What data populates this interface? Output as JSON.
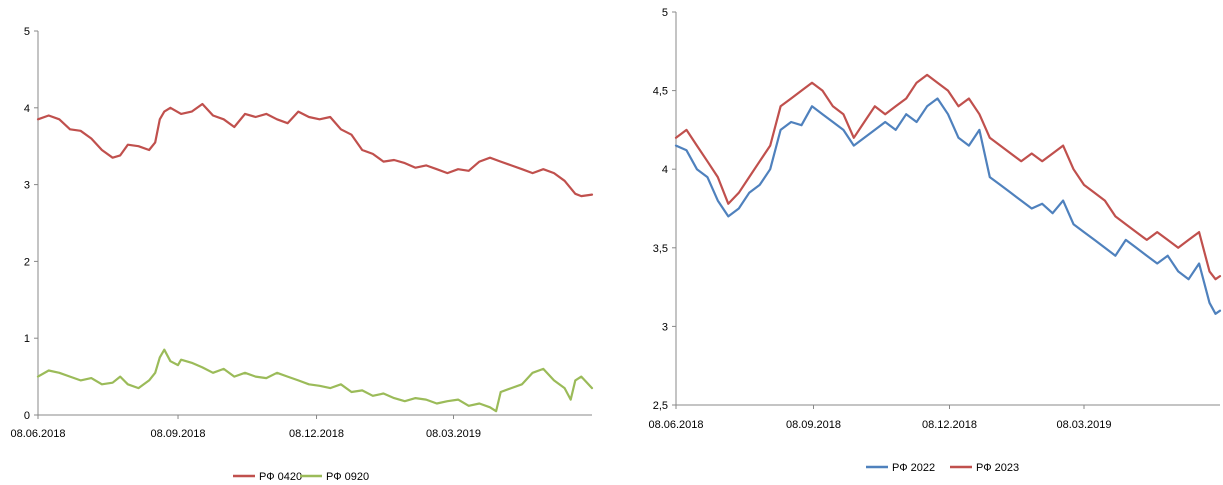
{
  "chart_data": [
    {
      "type": "line",
      "title": "",
      "xlabel": "",
      "ylabel": "",
      "x_tick_labels": [
        "08.06.2018",
        "08.09.2018",
        "08.12.2018",
        "08.03.2019"
      ],
      "x_range": [
        "08.06.2018",
        "07.06.2019"
      ],
      "y_ticks": [
        "0",
        "1",
        "2",
        "3",
        "4",
        "5"
      ],
      "ylim": [
        0,
        5
      ],
      "grid": false,
      "legend_position": "bottom",
      "series": [
        {
          "name": "РФ 0420",
          "color": "#C0504D",
          "points": [
            [
              "08.06.2018",
              3.85
            ],
            [
              "15.06.2018",
              3.9
            ],
            [
              "22.06.2018",
              3.85
            ],
            [
              "29.06.2018",
              3.72
            ],
            [
              "06.07.2018",
              3.7
            ],
            [
              "13.07.2018",
              3.6
            ],
            [
              "20.07.2018",
              3.45
            ],
            [
              "27.07.2018",
              3.35
            ],
            [
              "01.08.2018",
              3.38
            ],
            [
              "06.08.2018",
              3.52
            ],
            [
              "13.08.2018",
              3.5
            ],
            [
              "20.08.2018",
              3.45
            ],
            [
              "24.08.2018",
              3.55
            ],
            [
              "27.08.2018",
              3.85
            ],
            [
              "30.08.2018",
              3.95
            ],
            [
              "03.09.2018",
              4.0
            ],
            [
              "10.09.2018",
              3.92
            ],
            [
              "17.09.2018",
              3.95
            ],
            [
              "24.09.2018",
              4.05
            ],
            [
              "01.10.2018",
              3.9
            ],
            [
              "08.10.2018",
              3.85
            ],
            [
              "15.10.2018",
              3.75
            ],
            [
              "22.10.2018",
              3.92
            ],
            [
              "29.10.2018",
              3.88
            ],
            [
              "05.11.2018",
              3.92
            ],
            [
              "12.11.2018",
              3.85
            ],
            [
              "19.11.2018",
              3.8
            ],
            [
              "26.11.2018",
              3.95
            ],
            [
              "03.12.2018",
              3.88
            ],
            [
              "10.12.2018",
              3.85
            ],
            [
              "17.12.2018",
              3.88
            ],
            [
              "24.12.2018",
              3.72
            ],
            [
              "31.12.2018",
              3.65
            ],
            [
              "07.01.2019",
              3.45
            ],
            [
              "14.01.2019",
              3.4
            ],
            [
              "21.01.2019",
              3.3
            ],
            [
              "28.01.2019",
              3.32
            ],
            [
              "04.02.2019",
              3.28
            ],
            [
              "11.02.2019",
              3.22
            ],
            [
              "18.02.2019",
              3.25
            ],
            [
              "25.02.2019",
              3.2
            ],
            [
              "04.03.2019",
              3.15
            ],
            [
              "11.03.2019",
              3.2
            ],
            [
              "18.03.2019",
              3.18
            ],
            [
              "25.03.2019",
              3.3
            ],
            [
              "01.04.2019",
              3.35
            ],
            [
              "08.04.2019",
              3.3
            ],
            [
              "15.04.2019",
              3.25
            ],
            [
              "22.04.2019",
              3.2
            ],
            [
              "29.04.2019",
              3.15
            ],
            [
              "06.05.2019",
              3.2
            ],
            [
              "13.05.2019",
              3.15
            ],
            [
              "20.05.2019",
              3.05
            ],
            [
              "27.05.2019",
              2.88
            ],
            [
              "31.05.2019",
              2.85
            ],
            [
              "07.06.2019",
              2.87
            ]
          ]
        },
        {
          "name": "РФ 0920",
          "color": "#9BBB59",
          "points": [
            [
              "08.06.2018",
              0.5
            ],
            [
              "15.06.2018",
              0.58
            ],
            [
              "22.06.2018",
              0.55
            ],
            [
              "29.06.2018",
              0.5
            ],
            [
              "06.07.2018",
              0.45
            ],
            [
              "13.07.2018",
              0.48
            ],
            [
              "20.07.2018",
              0.4
            ],
            [
              "27.07.2018",
              0.42
            ],
            [
              "01.08.2018",
              0.5
            ],
            [
              "06.08.2018",
              0.4
            ],
            [
              "13.08.2018",
              0.35
            ],
            [
              "20.08.2018",
              0.45
            ],
            [
              "24.08.2018",
              0.55
            ],
            [
              "27.08.2018",
              0.75
            ],
            [
              "30.08.2018",
              0.85
            ],
            [
              "03.09.2018",
              0.7
            ],
            [
              "08.09.2018",
              0.65
            ],
            [
              "10.09.2018",
              0.72
            ],
            [
              "17.09.2018",
              0.68
            ],
            [
              "24.09.2018",
              0.62
            ],
            [
              "01.10.2018",
              0.55
            ],
            [
              "08.10.2018",
              0.6
            ],
            [
              "15.10.2018",
              0.5
            ],
            [
              "22.10.2018",
              0.55
            ],
            [
              "29.10.2018",
              0.5
            ],
            [
              "05.11.2018",
              0.48
            ],
            [
              "12.11.2018",
              0.55
            ],
            [
              "19.11.2018",
              0.5
            ],
            [
              "26.11.2018",
              0.45
            ],
            [
              "03.12.2018",
              0.4
            ],
            [
              "10.12.2018",
              0.38
            ],
            [
              "17.12.2018",
              0.35
            ],
            [
              "24.12.2018",
              0.4
            ],
            [
              "31.12.2018",
              0.3
            ],
            [
              "07.01.2019",
              0.32
            ],
            [
              "14.01.2019",
              0.25
            ],
            [
              "21.01.2019",
              0.28
            ],
            [
              "28.01.2019",
              0.22
            ],
            [
              "04.02.2019",
              0.18
            ],
            [
              "11.02.2019",
              0.22
            ],
            [
              "18.02.2019",
              0.2
            ],
            [
              "25.02.2019",
              0.15
            ],
            [
              "04.03.2019",
              0.18
            ],
            [
              "11.03.2019",
              0.2
            ],
            [
              "18.03.2019",
              0.12
            ],
            [
              "25.03.2019",
              0.15
            ],
            [
              "01.04.2019",
              0.1
            ],
            [
              "05.04.2019",
              0.05
            ],
            [
              "08.04.2019",
              0.3
            ],
            [
              "15.04.2019",
              0.35
            ],
            [
              "22.04.2019",
              0.4
            ],
            [
              "29.04.2019",
              0.55
            ],
            [
              "06.05.2019",
              0.6
            ],
            [
              "13.05.2019",
              0.45
            ],
            [
              "20.05.2019",
              0.35
            ],
            [
              "24.05.2019",
              0.2
            ],
            [
              "27.05.2019",
              0.45
            ],
            [
              "31.05.2019",
              0.5
            ],
            [
              "07.06.2019",
              0.35
            ]
          ]
        }
      ]
    },
    {
      "type": "line",
      "title": "",
      "xlabel": "",
      "ylabel": "",
      "x_tick_labels": [
        "08.06.2018",
        "08.09.2018",
        "08.12.2018",
        "08.03.2019"
      ],
      "x_range": [
        "08.06.2018",
        "07.06.2019"
      ],
      "y_ticks": [
        "2,5",
        "3",
        "3,5",
        "4",
        "4,5",
        "5"
      ],
      "ylim": [
        2.5,
        5
      ],
      "grid": false,
      "legend_position": "bottom",
      "series": [
        {
          "name": "РФ 2022",
          "color": "#4F81BD",
          "points": [
            [
              "08.06.2018",
              4.15
            ],
            [
              "15.06.2018",
              4.12
            ],
            [
              "22.06.2018",
              4.0
            ],
            [
              "29.06.2018",
              3.95
            ],
            [
              "06.07.2018",
              3.8
            ],
            [
              "13.07.2018",
              3.7
            ],
            [
              "20.07.2018",
              3.75
            ],
            [
              "27.07.2018",
              3.85
            ],
            [
              "03.08.2018",
              3.9
            ],
            [
              "10.08.2018",
              4.0
            ],
            [
              "17.08.2018",
              4.25
            ],
            [
              "24.08.2018",
              4.3
            ],
            [
              "31.08.2018",
              4.28
            ],
            [
              "07.09.2018",
              4.4
            ],
            [
              "14.09.2018",
              4.35
            ],
            [
              "21.09.2018",
              4.3
            ],
            [
              "28.09.2018",
              4.25
            ],
            [
              "05.10.2018",
              4.15
            ],
            [
              "12.10.2018",
              4.2
            ],
            [
              "19.10.2018",
              4.25
            ],
            [
              "26.10.2018",
              4.3
            ],
            [
              "02.11.2018",
              4.25
            ],
            [
              "09.11.2018",
              4.35
            ],
            [
              "16.11.2018",
              4.3
            ],
            [
              "23.11.2018",
              4.4
            ],
            [
              "30.11.2018",
              4.45
            ],
            [
              "07.12.2018",
              4.35
            ],
            [
              "14.12.2018",
              4.2
            ],
            [
              "21.12.2018",
              4.15
            ],
            [
              "28.12.2018",
              4.25
            ],
            [
              "04.01.2019",
              3.95
            ],
            [
              "11.01.2019",
              3.9
            ],
            [
              "18.01.2019",
              3.85
            ],
            [
              "25.01.2019",
              3.8
            ],
            [
              "01.02.2019",
              3.75
            ],
            [
              "08.02.2019",
              3.78
            ],
            [
              "15.02.2019",
              3.72
            ],
            [
              "22.02.2019",
              3.8
            ],
            [
              "01.03.2019",
              3.65
            ],
            [
              "08.03.2019",
              3.6
            ],
            [
              "15.03.2019",
              3.55
            ],
            [
              "22.03.2019",
              3.5
            ],
            [
              "29.03.2019",
              3.45
            ],
            [
              "05.04.2019",
              3.55
            ],
            [
              "12.04.2019",
              3.5
            ],
            [
              "19.04.2019",
              3.45
            ],
            [
              "26.04.2019",
              3.4
            ],
            [
              "03.05.2019",
              3.45
            ],
            [
              "10.05.2019",
              3.35
            ],
            [
              "17.05.2019",
              3.3
            ],
            [
              "24.05.2019",
              3.4
            ],
            [
              "31.05.2019",
              3.15
            ],
            [
              "04.06.2019",
              3.08
            ],
            [
              "07.06.2019",
              3.1
            ]
          ]
        },
        {
          "name": "РФ 2023",
          "color": "#C0504D",
          "points": [
            [
              "08.06.2018",
              4.2
            ],
            [
              "15.06.2018",
              4.25
            ],
            [
              "22.06.2018",
              4.15
            ],
            [
              "29.06.2018",
              4.05
            ],
            [
              "06.07.2018",
              3.95
            ],
            [
              "13.07.2018",
              3.78
            ],
            [
              "20.07.2018",
              3.85
            ],
            [
              "27.07.2018",
              3.95
            ],
            [
              "03.08.2018",
              4.05
            ],
            [
              "10.08.2018",
              4.15
            ],
            [
              "17.08.2018",
              4.4
            ],
            [
              "24.08.2018",
              4.45
            ],
            [
              "31.08.2018",
              4.5
            ],
            [
              "07.09.2018",
              4.55
            ],
            [
              "14.09.2018",
              4.5
            ],
            [
              "21.09.2018",
              4.4
            ],
            [
              "28.09.2018",
              4.35
            ],
            [
              "05.10.2018",
              4.2
            ],
            [
              "12.10.2018",
              4.3
            ],
            [
              "19.10.2018",
              4.4
            ],
            [
              "26.10.2018",
              4.35
            ],
            [
              "02.11.2018",
              4.4
            ],
            [
              "09.11.2018",
              4.45
            ],
            [
              "16.11.2018",
              4.55
            ],
            [
              "23.11.2018",
              4.6
            ],
            [
              "30.11.2018",
              4.55
            ],
            [
              "07.12.2018",
              4.5
            ],
            [
              "14.12.2018",
              4.4
            ],
            [
              "21.12.2018",
              4.45
            ],
            [
              "28.12.2018",
              4.35
            ],
            [
              "04.01.2019",
              4.2
            ],
            [
              "11.01.2019",
              4.15
            ],
            [
              "18.01.2019",
              4.1
            ],
            [
              "25.01.2019",
              4.05
            ],
            [
              "01.02.2019",
              4.1
            ],
            [
              "08.02.2019",
              4.05
            ],
            [
              "15.02.2019",
              4.1
            ],
            [
              "22.02.2019",
              4.15
            ],
            [
              "01.03.2019",
              4.0
            ],
            [
              "08.03.2019",
              3.9
            ],
            [
              "15.03.2019",
              3.85
            ],
            [
              "22.03.2019",
              3.8
            ],
            [
              "29.03.2019",
              3.7
            ],
            [
              "05.04.2019",
              3.65
            ],
            [
              "12.04.2019",
              3.6
            ],
            [
              "19.04.2019",
              3.55
            ],
            [
              "26.04.2019",
              3.6
            ],
            [
              "03.05.2019",
              3.55
            ],
            [
              "10.05.2019",
              3.5
            ],
            [
              "17.05.2019",
              3.55
            ],
            [
              "24.05.2019",
              3.6
            ],
            [
              "31.05.2019",
              3.35
            ],
            [
              "04.06.2019",
              3.3
            ],
            [
              "07.06.2019",
              3.32
            ]
          ]
        }
      ]
    }
  ]
}
